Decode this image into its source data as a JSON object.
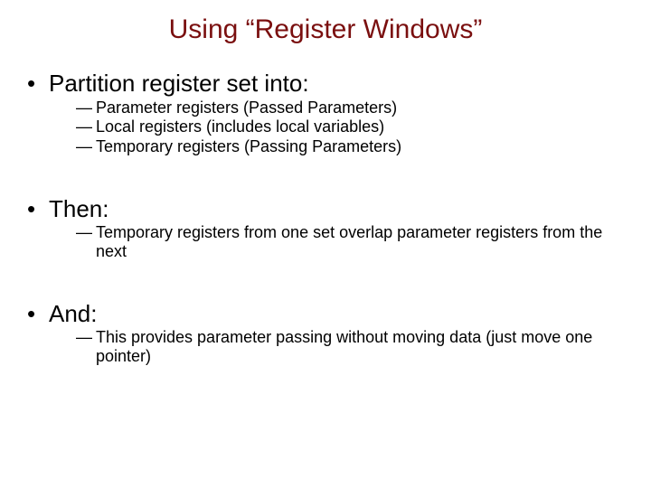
{
  "title_color": "#7a0f0f",
  "text_color": "#000000",
  "title": "Using “Register Windows”",
  "sections": [
    {
      "heading": "Partition register set into:",
      "items": [
        " Parameter registers (Passed Parameters)",
        " Local registers (includes local variables)",
        "Temporary registers (Passing Parameters)"
      ]
    },
    {
      "heading": "Then:",
      "items": [
        "Temporary registers from one set overlap parameter registers from the next"
      ]
    },
    {
      "heading": "And:",
      "items": [
        "This provides parameter passing without moving data (just move one pointer)"
      ]
    }
  ]
}
